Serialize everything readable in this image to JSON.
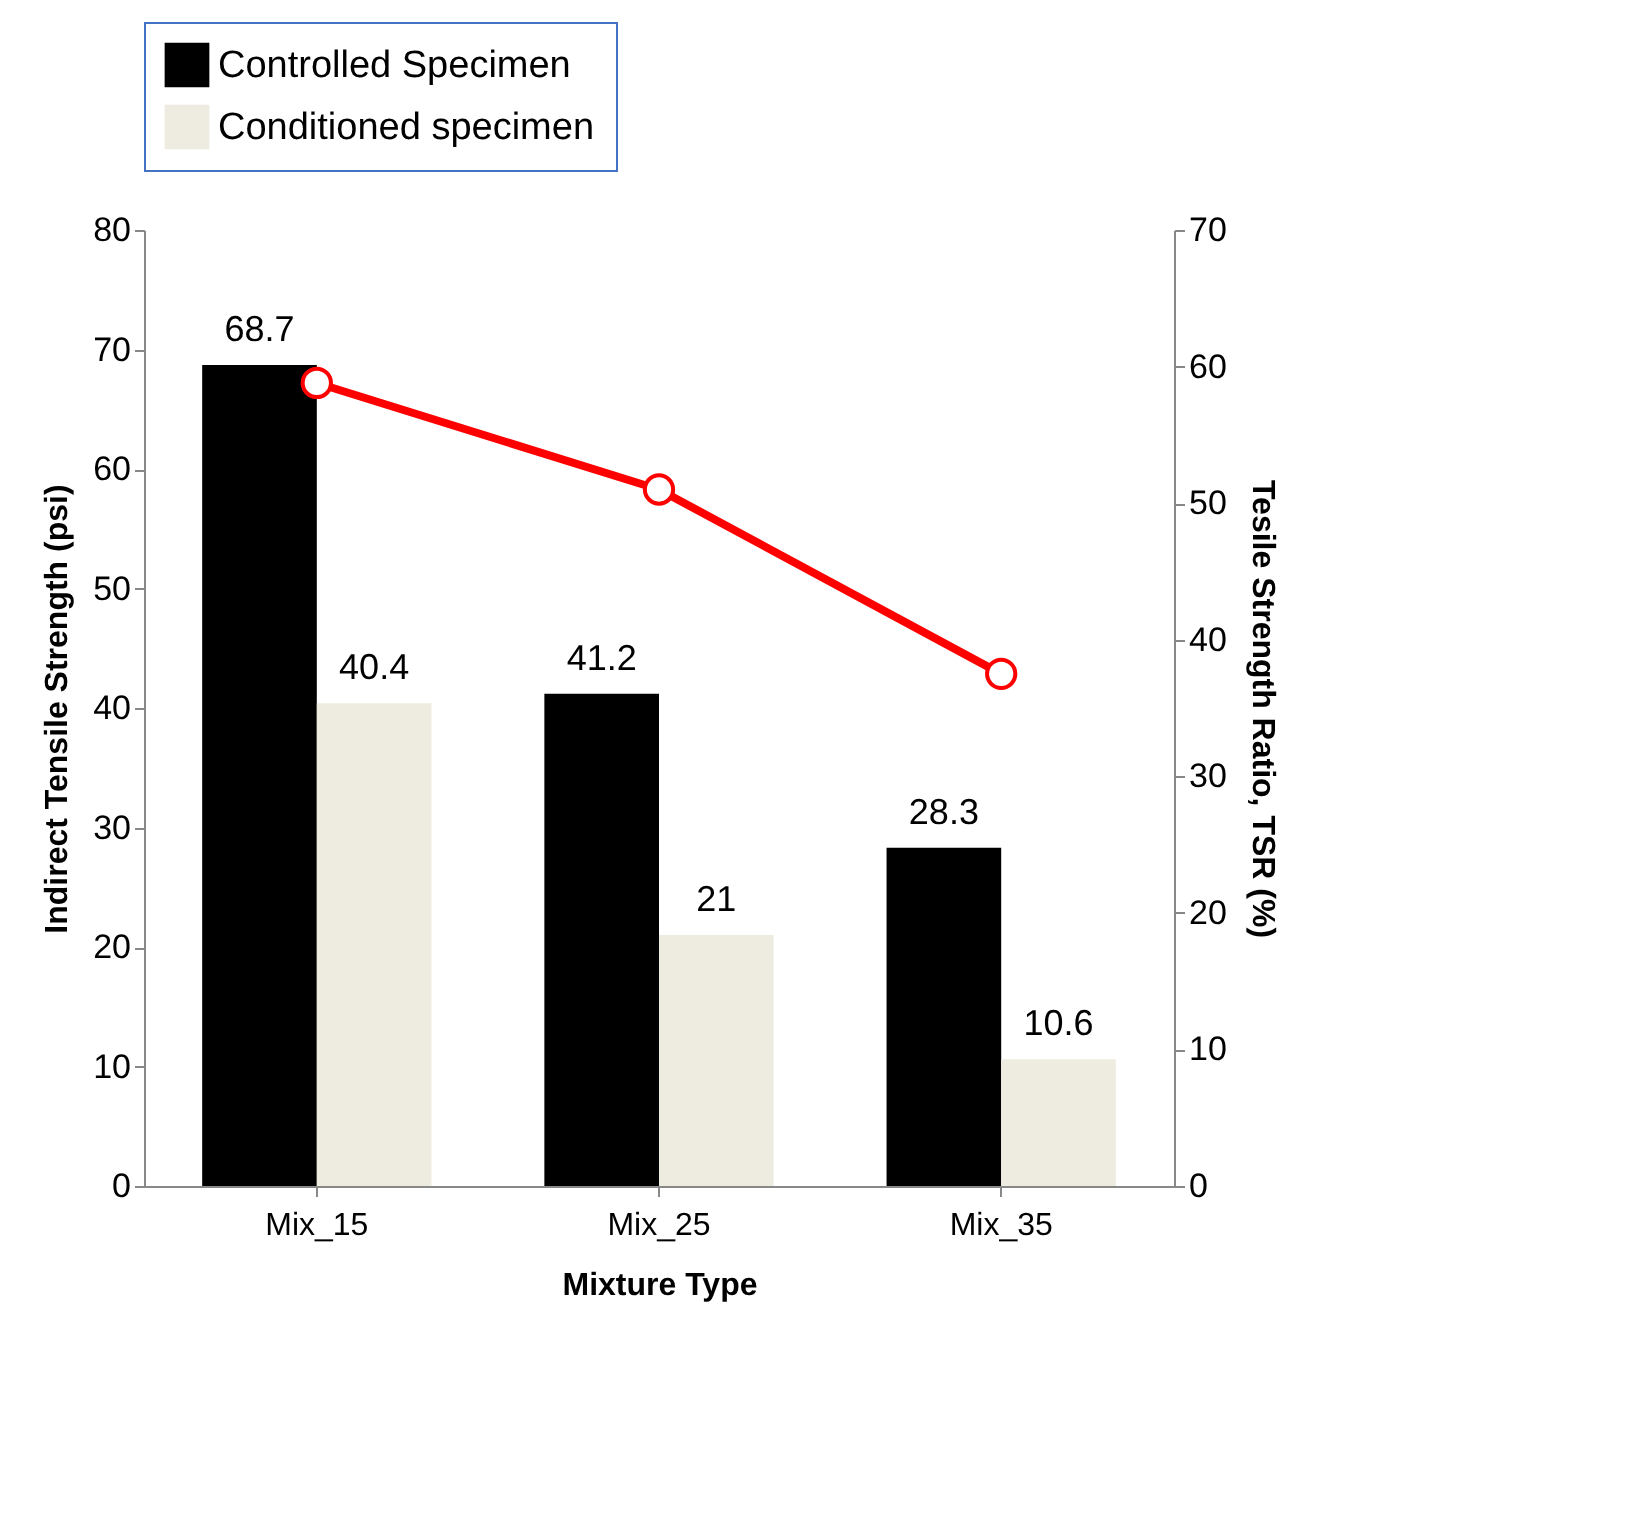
{
  "chart_data": {
    "type": "bar",
    "xlabel": "Mixture Type",
    "ylabel": "Indirect Tensile Strength (psi)",
    "y2label": "Tesile Strength Ratio, TSR (%)",
    "categories": [
      "Mix_15",
      "Mix_25",
      "Mix_35"
    ],
    "series": [
      {
        "name": "Controlled Specimen",
        "color": "#000000",
        "values": [
          68.7,
          41.2,
          28.3
        ],
        "data_labels": true
      },
      {
        "name": "Conditioned specimen",
        "color": "#eeece1",
        "values": [
          40.4,
          21,
          10.6
        ],
        "data_labels": true
      },
      {
        "type": "line",
        "axis": "y2",
        "color": "#ff0000",
        "values": [
          58.8,
          51.0,
          37.5
        ],
        "marker": "circle",
        "line_style": "solid"
      }
    ],
    "ylim": [
      0,
      80
    ],
    "yticks": [
      0,
      10,
      20,
      30,
      40,
      50,
      60,
      70,
      80
    ],
    "y2lim": [
      0,
      70
    ],
    "y2ticks": [
      0,
      10,
      20,
      30,
      40,
      50,
      60,
      70
    ],
    "legend": "top",
    "grid": false
  }
}
